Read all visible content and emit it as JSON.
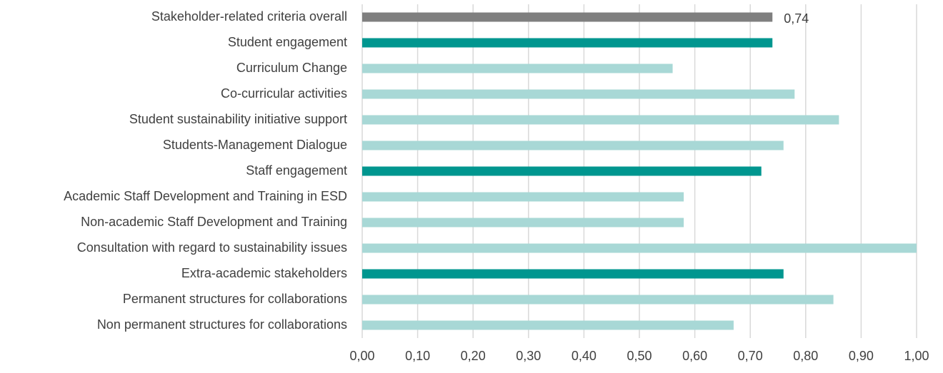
{
  "chart_data": {
    "type": "bar",
    "orientation": "horizontal",
    "categories": [
      "Stakeholder-related criteria overall",
      "Student engagement",
      "Curriculum Change",
      "Co-curricular activities",
      "Student sustainability initiative support",
      "Students-Management Dialogue",
      "Staff engagement",
      "Academic Staff Development and Training in ESD",
      "Non-academic Staff Development and Training",
      "Consultation with regard to sustainability issues",
      "Extra-academic stakeholders",
      "Permanent structures for collaborations",
      "Non permanent structures for collaborations"
    ],
    "values": [
      0.74,
      0.74,
      0.56,
      0.78,
      0.86,
      0.76,
      0.72,
      0.58,
      0.58,
      1.0,
      0.76,
      0.85,
      0.67
    ],
    "value_labels": [
      "0,74",
      null,
      null,
      null,
      null,
      null,
      null,
      null,
      null,
      null,
      null,
      null,
      null
    ],
    "colors": [
      "#7f7f7f",
      "#00968f",
      "#a8d8d6",
      "#a8d8d6",
      "#a8d8d6",
      "#a8d8d6",
      "#00968f",
      "#a8d8d6",
      "#a8d8d6",
      "#a8d8d6",
      "#00968f",
      "#a8d8d6",
      "#a8d8d6"
    ],
    "xlim": [
      0,
      1.0
    ],
    "xticks": [
      {
        "value": 0,
        "label": "0,00"
      },
      {
        "value": 0.1,
        "label": "0,10"
      },
      {
        "value": 0.2,
        "label": "0,20"
      },
      {
        "value": 0.3,
        "label": "0,30"
      },
      {
        "value": 0.4,
        "label": "0,40"
      },
      {
        "value": 0.5,
        "label": "0,50"
      },
      {
        "value": 0.6,
        "label": "0,60"
      },
      {
        "value": 0.7,
        "label": "0,70"
      },
      {
        "value": 0.8,
        "label": "0,80"
      },
      {
        "value": 0.9,
        "label": "0,90"
      },
      {
        "value": 1.0,
        "label": "1,00"
      }
    ],
    "grid": true
  }
}
